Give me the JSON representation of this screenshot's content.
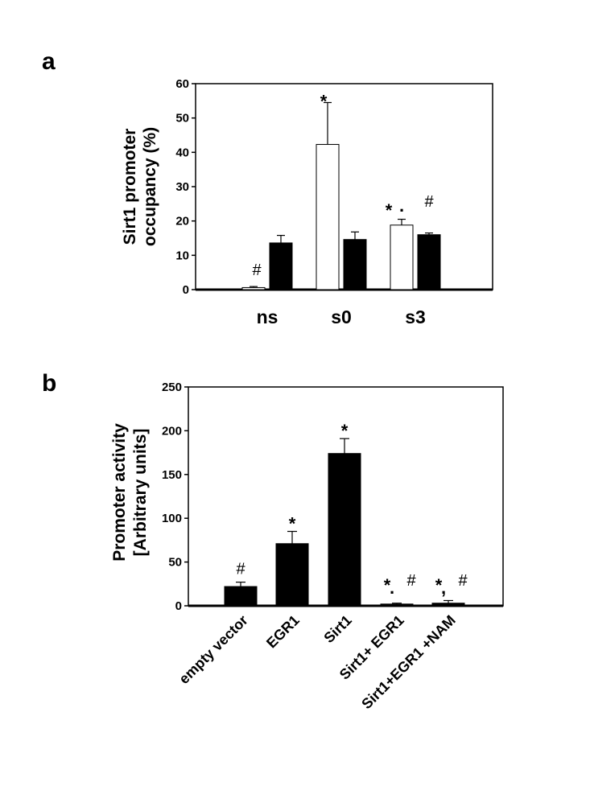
{
  "chart_data": [
    {
      "panel_label": "a",
      "type": "bar",
      "ylabel_lines": [
        "Sirt1 promoter",
        "occupancy (%)"
      ],
      "ylim": [
        0,
        60
      ],
      "yticks": [
        0,
        10,
        20,
        30,
        40,
        50,
        60
      ],
      "categories": [
        "ns",
        "s0",
        "s3"
      ],
      "series": [
        {
          "color": "#ffffff",
          "values": [
            0.6,
            42.3,
            18.8
          ],
          "errors": [
            0.3,
            12.2,
            1.7
          ]
        },
        {
          "color": "#000000",
          "values": [
            13.6,
            14.6,
            16.0
          ],
          "errors": [
            2.2,
            2.2,
            0.5
          ]
        }
      ],
      "annotations": [
        {
          "category": 0,
          "series": 0,
          "text": "#"
        },
        {
          "category": 1,
          "series": 0,
          "text": "*"
        },
        {
          "category": 2,
          "series": 0,
          "text": "*"
        },
        {
          "category": 2,
          "series": 0,
          "text": "."
        },
        {
          "category": 2,
          "series": 0,
          "text": "#"
        }
      ]
    },
    {
      "panel_label": "b",
      "type": "bar",
      "ylabel_lines": [
        "Promoter activity",
        "[Arbitrary units]"
      ],
      "ylim": [
        0,
        250
      ],
      "yticks": [
        0,
        50,
        100,
        150,
        200,
        250
      ],
      "categories": [
        "empty vector",
        "EGR1",
        "Sirt1",
        "Sirt1+ EGR1",
        "Sirt1+EGR1 +NAM"
      ],
      "values": [
        22,
        71,
        174,
        2,
        3
      ],
      "errors": [
        5,
        14,
        17,
        1,
        3
      ],
      "bar_color": "#000000",
      "annotations": [
        {
          "category": 0,
          "text": "#"
        },
        {
          "category": 1,
          "text": "*"
        },
        {
          "category": 2,
          "text": "*"
        },
        {
          "category": 3,
          "text": "*"
        },
        {
          "category": 3,
          "text": "."
        },
        {
          "category": 3,
          "text": "#"
        },
        {
          "category": 4,
          "text": "*"
        },
        {
          "category": 4,
          "text": ","
        },
        {
          "category": 4,
          "text": "#"
        }
      ]
    }
  ]
}
